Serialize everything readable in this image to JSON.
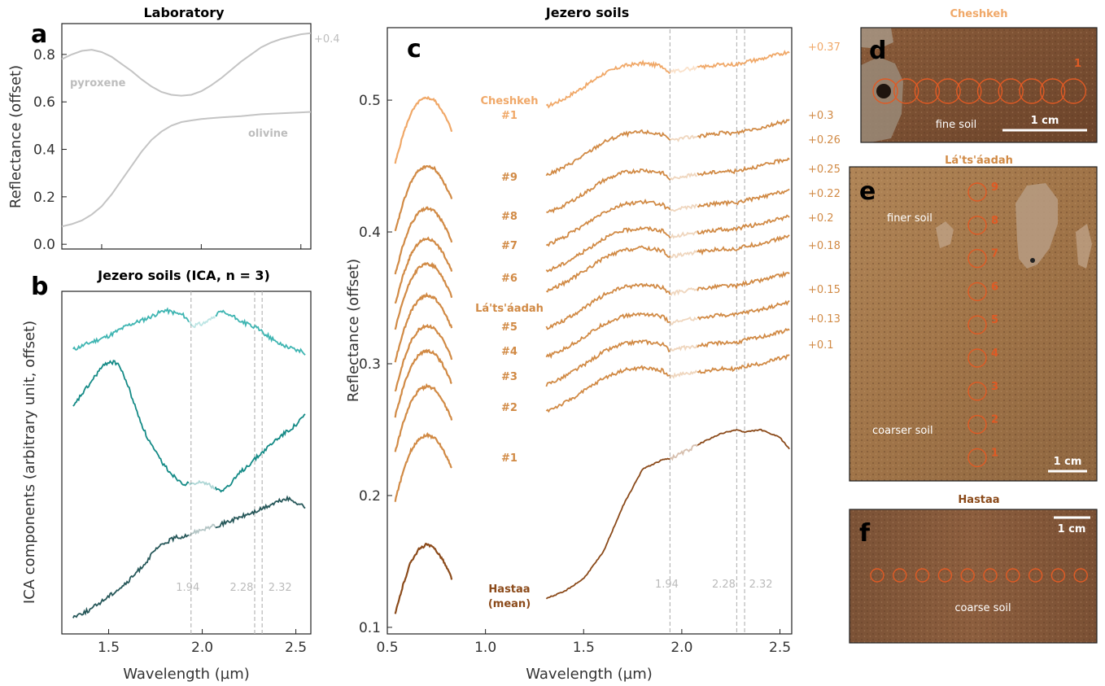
{
  "colors": {
    "lab": "#c4c4c4",
    "cheshkeh": "#f0a868",
    "latsaadah": "#d18a45",
    "hastaa": "#8b4a1a",
    "ica1": "#3fb5b2",
    "ica2": "#148a86",
    "ica3": "#27585a",
    "guide": "#b8b8b8",
    "circle": "#e05a24"
  },
  "chart_data": [
    {
      "panel": "a",
      "type": "line",
      "title": "Laboratory",
      "ylabel": "Reflectance (offset)",
      "xlim": [
        1.3,
        2.55
      ],
      "ylim": [
        -0.02,
        0.93
      ],
      "yticks": [
        "0.0",
        "0.2",
        "0.4",
        "0.6",
        "0.8"
      ],
      "ytick_values": [
        0.0,
        0.2,
        0.4,
        0.6,
        0.8
      ],
      "series": [
        {
          "name": "pyroxene",
          "offset_label": "+0.4",
          "x": [
            1.3,
            1.35,
            1.4,
            1.45,
            1.5,
            1.55,
            1.6,
            1.65,
            1.7,
            1.75,
            1.8,
            1.85,
            1.9,
            1.95,
            2.0,
            2.05,
            2.1,
            2.15,
            2.2,
            2.25,
            2.3,
            2.35,
            2.4,
            2.45,
            2.5,
            2.55
          ],
          "y": [
            0.78,
            0.8,
            0.815,
            0.82,
            0.81,
            0.79,
            0.76,
            0.73,
            0.695,
            0.665,
            0.642,
            0.63,
            0.626,
            0.63,
            0.645,
            0.67,
            0.7,
            0.735,
            0.77,
            0.8,
            0.83,
            0.85,
            0.865,
            0.875,
            0.885,
            0.89
          ]
        },
        {
          "name": "olivine",
          "x": [
            1.3,
            1.35,
            1.4,
            1.45,
            1.5,
            1.55,
            1.6,
            1.65,
            1.7,
            1.75,
            1.8,
            1.85,
            1.9,
            1.95,
            2.0,
            2.1,
            2.2,
            2.3,
            2.4,
            2.5,
            2.55
          ],
          "y": [
            0.075,
            0.085,
            0.1,
            0.125,
            0.16,
            0.21,
            0.27,
            0.33,
            0.39,
            0.44,
            0.475,
            0.5,
            0.515,
            0.522,
            0.528,
            0.535,
            0.54,
            0.548,
            0.552,
            0.556,
            0.558
          ]
        }
      ]
    },
    {
      "panel": "b",
      "type": "line",
      "title": "Jezero soils (ICA, n = 3)",
      "xlabel": "Wavelength (µm)",
      "ylabel": "ICA components (arbitrary unit, offset)",
      "xlim": [
        1.25,
        2.58
      ],
      "ylim": [
        0,
        10
      ],
      "xticks": [
        "1.5",
        "2.0",
        "2.5"
      ],
      "xtick_values": [
        1.5,
        2.0,
        2.5
      ],
      "vlines": [
        {
          "x": 1.94,
          "label": "1.94"
        },
        {
          "x": 2.28,
          "label": "2.28"
        },
        {
          "x": 2.32,
          "label": "2.32"
        }
      ],
      "series": [
        {
          "name": "",
          "x": [
            1.31,
            1.4,
            1.5,
            1.6,
            1.7,
            1.8,
            1.9,
            1.95,
            2.0,
            2.05,
            2.1,
            2.15,
            2.2,
            2.3,
            2.4,
            2.55
          ],
          "y": [
            8.3,
            8.5,
            8.7,
            9.0,
            9.2,
            9.45,
            9.3,
            9.0,
            9.05,
            9.2,
            9.4,
            9.3,
            9.15,
            8.9,
            8.5,
            8.2
          ]
        },
        {
          "name": "",
          "x": [
            1.31,
            1.35,
            1.4,
            1.45,
            1.5,
            1.55,
            1.6,
            1.65,
            1.7,
            1.75,
            1.8,
            1.85,
            1.9,
            1.95,
            2.0,
            2.05,
            2.1,
            2.15,
            2.2,
            2.3,
            2.4,
            2.5,
            2.55
          ],
          "y": [
            6.6,
            6.95,
            7.3,
            7.7,
            7.95,
            7.9,
            7.3,
            6.5,
            5.8,
            5.3,
            4.9,
            4.6,
            4.4,
            4.35,
            4.45,
            4.3,
            4.2,
            4.35,
            4.7,
            5.2,
            5.7,
            6.1,
            6.4
          ]
        },
        {
          "name": "",
          "x": [
            1.31,
            1.4,
            1.5,
            1.6,
            1.7,
            1.75,
            1.8,
            1.85,
            1.9,
            1.95,
            2.0,
            2.1,
            2.2,
            2.3,
            2.4,
            2.45,
            2.5,
            2.55
          ],
          "y": [
            0.5,
            0.7,
            1.1,
            1.5,
            2.1,
            2.45,
            2.65,
            2.8,
            2.85,
            2.95,
            3.05,
            3.2,
            3.4,
            3.6,
            3.85,
            3.95,
            3.85,
            3.7
          ]
        }
      ]
    },
    {
      "panel": "c",
      "type": "line",
      "title": "Jezero soils",
      "xlabel": "Wavelength (µm)",
      "ylabel": "Reflectance (offset)",
      "xlim": [
        0.5,
        2.56
      ],
      "ylim": [
        0.095,
        0.555
      ],
      "xticks": [
        "0.5",
        "1.0",
        "1.5",
        "2.0",
        "2.5"
      ],
      "xtick_values": [
        0.5,
        1.0,
        1.5,
        2.0,
        2.5
      ],
      "yticks": [
        "0.1",
        "0.2",
        "0.3",
        "0.4",
        "0.5"
      ],
      "ytick_values": [
        0.1,
        0.2,
        0.3,
        0.4,
        0.5
      ],
      "vlines": [
        {
          "x": 1.94,
          "label": "1.94"
        },
        {
          "x": 2.28,
          "label": "2.28"
        },
        {
          "x": 2.32,
          "label": "2.32"
        }
      ],
      "vis_shape": {
        "x": [
          0.54,
          0.58,
          0.62,
          0.66,
          0.7,
          0.74,
          0.78,
          0.82,
          0.83
        ],
        "dy": [
          0,
          0.022,
          0.038,
          0.047,
          0.05,
          0.048,
          0.04,
          0.028,
          0.024
        ]
      },
      "ir_shape": {
        "x": [
          1.31,
          1.4,
          1.5,
          1.6,
          1.7,
          1.8,
          1.9,
          1.94,
          2.0,
          2.1,
          2.2,
          2.28,
          2.32,
          2.4,
          2.5,
          2.55
        ],
        "dy": [
          0,
          0.006,
          0.015,
          0.025,
          0.031,
          0.033,
          0.031,
          0.026,
          0.028,
          0.03,
          0.032,
          0.032,
          0.034,
          0.036,
          0.04,
          0.042
        ]
      },
      "series": [
        {
          "name": "Cheshkeh #1",
          "group": "cheshkeh",
          "label": "Cheshkeh\n#1",
          "offset": "+0.37",
          "vis_base": 0.452,
          "ir_base": 0.495
        },
        {
          "name": "#9",
          "group": "latsaadah",
          "label": "#9",
          "offset": "+0.3",
          "vis_base": 0.4,
          "ir_base": 0.443
        },
        {
          "name": "#8",
          "group": "latsaadah",
          "label": "#8",
          "offset": "+0.26",
          "vis_base": 0.368,
          "ir_base": 0.414
        },
        {
          "name": "#7",
          "group": "latsaadah",
          "label": "#7",
          "offset": "+0.25",
          "vis_base": 0.345,
          "ir_base": 0.39
        },
        {
          "name": "#6",
          "group": "latsaadah",
          "label": "#6",
          "offset": "+0.22",
          "vis_base": 0.326,
          "ir_base": 0.37
        },
        {
          "name": "#5",
          "group": "latsaadah",
          "label": "#5",
          "offset": "+0.2",
          "vis_base": 0.302,
          "ir_base": 0.355
        },
        {
          "name": "#4",
          "group": "latsaadah",
          "label": "#4",
          "offset": "+0.18",
          "vis_base": 0.279,
          "ir_base": 0.327
        },
        {
          "name": "#3",
          "group": "latsaadah",
          "label": "#3",
          "offset": "+0.15",
          "vis_base": 0.26,
          "ir_base": 0.305
        },
        {
          "name": "#2",
          "group": "latsaadah",
          "label": "#2",
          "offset": "+0.13",
          "vis_base": 0.233,
          "ir_base": 0.284
        },
        {
          "name": "#1",
          "group": "latsaadah",
          "label": "#1",
          "offset": "+0.1",
          "vis_base": 0.196,
          "ir_base": 0.264
        },
        {
          "name": "Hastaa (mean)",
          "group": "hastaa",
          "label": "Hastaa\n(mean)",
          "vis_base": 0.11,
          "ir_base": 0.122
        }
      ],
      "group_labels": {
        "latsaadah": "Lá'ts'áadah"
      }
    }
  ],
  "panel_letters": {
    "a": "a",
    "b": "b",
    "c": "c",
    "d": "d",
    "e": "e",
    "f": "f"
  },
  "images": {
    "d": {
      "title": "Cheshkeh",
      "note": "fine soil",
      "scale": "1 cm",
      "circle_label": "1"
    },
    "e": {
      "title": "Lá'ts'áadah",
      "notes": [
        "finer soil",
        "coarser soil"
      ],
      "scale": "1 cm",
      "circle_labels": [
        "9",
        "8",
        "7",
        "6",
        "5",
        "4",
        "3",
        "2",
        "1"
      ]
    },
    "f": {
      "title": "Hastaa",
      "note": "coarse soil",
      "scale": "1 cm"
    }
  }
}
